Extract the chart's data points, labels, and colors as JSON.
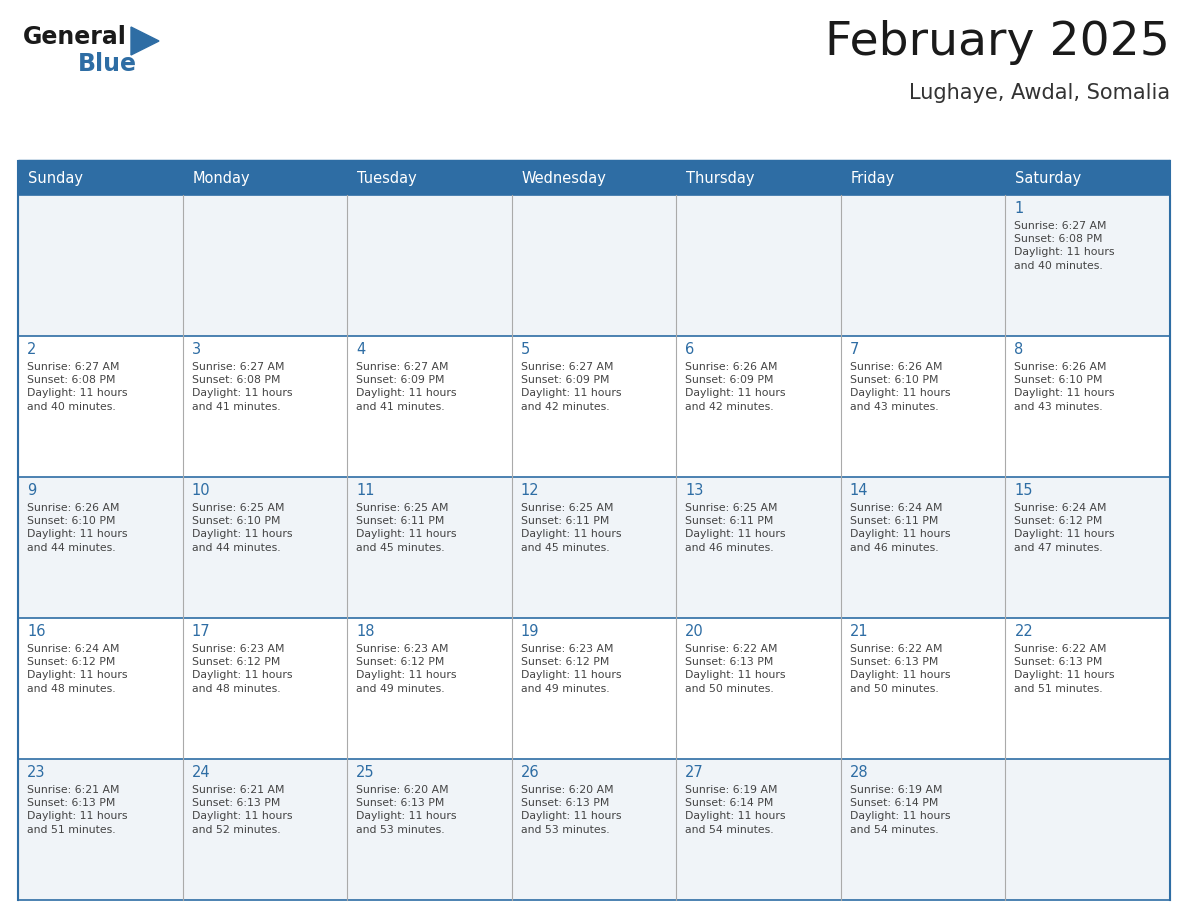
{
  "title": "February 2025",
  "subtitle": "Lughaye, Awdal, Somalia",
  "days_of_week": [
    "Sunday",
    "Monday",
    "Tuesday",
    "Wednesday",
    "Thursday",
    "Friday",
    "Saturday"
  ],
  "header_bg": "#2E6DA4",
  "header_text": "#FFFFFF",
  "cell_bg_even": "#F0F4F8",
  "cell_bg_odd": "#FFFFFF",
  "border_color": "#2E6DA4",
  "sep_color": "#AAAAAA",
  "text_color": "#444444",
  "day_number_color": "#2E6DA4",
  "logo_general_color": "#1a1a1a",
  "logo_blue_color": "#2E6DA4",
  "title_color": "#1a1a1a",
  "subtitle_color": "#333333",
  "calendar_data": [
    [
      {
        "day": 0,
        "sunrise": "",
        "sunset": "",
        "daylight": ""
      },
      {
        "day": 0,
        "sunrise": "",
        "sunset": "",
        "daylight": ""
      },
      {
        "day": 0,
        "sunrise": "",
        "sunset": "",
        "daylight": ""
      },
      {
        "day": 0,
        "sunrise": "",
        "sunset": "",
        "daylight": ""
      },
      {
        "day": 0,
        "sunrise": "",
        "sunset": "",
        "daylight": ""
      },
      {
        "day": 0,
        "sunrise": "",
        "sunset": "",
        "daylight": ""
      },
      {
        "day": 1,
        "sunrise": "Sunrise: 6:27 AM",
        "sunset": "Sunset: 6:08 PM",
        "daylight": "Daylight: 11 hours\nand 40 minutes."
      }
    ],
    [
      {
        "day": 2,
        "sunrise": "Sunrise: 6:27 AM",
        "sunset": "Sunset: 6:08 PM",
        "daylight": "Daylight: 11 hours\nand 40 minutes."
      },
      {
        "day": 3,
        "sunrise": "Sunrise: 6:27 AM",
        "sunset": "Sunset: 6:08 PM",
        "daylight": "Daylight: 11 hours\nand 41 minutes."
      },
      {
        "day": 4,
        "sunrise": "Sunrise: 6:27 AM",
        "sunset": "Sunset: 6:09 PM",
        "daylight": "Daylight: 11 hours\nand 41 minutes."
      },
      {
        "day": 5,
        "sunrise": "Sunrise: 6:27 AM",
        "sunset": "Sunset: 6:09 PM",
        "daylight": "Daylight: 11 hours\nand 42 minutes."
      },
      {
        "day": 6,
        "sunrise": "Sunrise: 6:26 AM",
        "sunset": "Sunset: 6:09 PM",
        "daylight": "Daylight: 11 hours\nand 42 minutes."
      },
      {
        "day": 7,
        "sunrise": "Sunrise: 6:26 AM",
        "sunset": "Sunset: 6:10 PM",
        "daylight": "Daylight: 11 hours\nand 43 minutes."
      },
      {
        "day": 8,
        "sunrise": "Sunrise: 6:26 AM",
        "sunset": "Sunset: 6:10 PM",
        "daylight": "Daylight: 11 hours\nand 43 minutes."
      }
    ],
    [
      {
        "day": 9,
        "sunrise": "Sunrise: 6:26 AM",
        "sunset": "Sunset: 6:10 PM",
        "daylight": "Daylight: 11 hours\nand 44 minutes."
      },
      {
        "day": 10,
        "sunrise": "Sunrise: 6:25 AM",
        "sunset": "Sunset: 6:10 PM",
        "daylight": "Daylight: 11 hours\nand 44 minutes."
      },
      {
        "day": 11,
        "sunrise": "Sunrise: 6:25 AM",
        "sunset": "Sunset: 6:11 PM",
        "daylight": "Daylight: 11 hours\nand 45 minutes."
      },
      {
        "day": 12,
        "sunrise": "Sunrise: 6:25 AM",
        "sunset": "Sunset: 6:11 PM",
        "daylight": "Daylight: 11 hours\nand 45 minutes."
      },
      {
        "day": 13,
        "sunrise": "Sunrise: 6:25 AM",
        "sunset": "Sunset: 6:11 PM",
        "daylight": "Daylight: 11 hours\nand 46 minutes."
      },
      {
        "day": 14,
        "sunrise": "Sunrise: 6:24 AM",
        "sunset": "Sunset: 6:11 PM",
        "daylight": "Daylight: 11 hours\nand 46 minutes."
      },
      {
        "day": 15,
        "sunrise": "Sunrise: 6:24 AM",
        "sunset": "Sunset: 6:12 PM",
        "daylight": "Daylight: 11 hours\nand 47 minutes."
      }
    ],
    [
      {
        "day": 16,
        "sunrise": "Sunrise: 6:24 AM",
        "sunset": "Sunset: 6:12 PM",
        "daylight": "Daylight: 11 hours\nand 48 minutes."
      },
      {
        "day": 17,
        "sunrise": "Sunrise: 6:23 AM",
        "sunset": "Sunset: 6:12 PM",
        "daylight": "Daylight: 11 hours\nand 48 minutes."
      },
      {
        "day": 18,
        "sunrise": "Sunrise: 6:23 AM",
        "sunset": "Sunset: 6:12 PM",
        "daylight": "Daylight: 11 hours\nand 49 minutes."
      },
      {
        "day": 19,
        "sunrise": "Sunrise: 6:23 AM",
        "sunset": "Sunset: 6:12 PM",
        "daylight": "Daylight: 11 hours\nand 49 minutes."
      },
      {
        "day": 20,
        "sunrise": "Sunrise: 6:22 AM",
        "sunset": "Sunset: 6:13 PM",
        "daylight": "Daylight: 11 hours\nand 50 minutes."
      },
      {
        "day": 21,
        "sunrise": "Sunrise: 6:22 AM",
        "sunset": "Sunset: 6:13 PM",
        "daylight": "Daylight: 11 hours\nand 50 minutes."
      },
      {
        "day": 22,
        "sunrise": "Sunrise: 6:22 AM",
        "sunset": "Sunset: 6:13 PM",
        "daylight": "Daylight: 11 hours\nand 51 minutes."
      }
    ],
    [
      {
        "day": 23,
        "sunrise": "Sunrise: 6:21 AM",
        "sunset": "Sunset: 6:13 PM",
        "daylight": "Daylight: 11 hours\nand 51 minutes."
      },
      {
        "day": 24,
        "sunrise": "Sunrise: 6:21 AM",
        "sunset": "Sunset: 6:13 PM",
        "daylight": "Daylight: 11 hours\nand 52 minutes."
      },
      {
        "day": 25,
        "sunrise": "Sunrise: 6:20 AM",
        "sunset": "Sunset: 6:13 PM",
        "daylight": "Daylight: 11 hours\nand 53 minutes."
      },
      {
        "day": 26,
        "sunrise": "Sunrise: 6:20 AM",
        "sunset": "Sunset: 6:13 PM",
        "daylight": "Daylight: 11 hours\nand 53 minutes."
      },
      {
        "day": 27,
        "sunrise": "Sunrise: 6:19 AM",
        "sunset": "Sunset: 6:14 PM",
        "daylight": "Daylight: 11 hours\nand 54 minutes."
      },
      {
        "day": 28,
        "sunrise": "Sunrise: 6:19 AM",
        "sunset": "Sunset: 6:14 PM",
        "daylight": "Daylight: 11 hours\nand 54 minutes."
      },
      {
        "day": 0,
        "sunrise": "",
        "sunset": "",
        "daylight": ""
      }
    ]
  ]
}
